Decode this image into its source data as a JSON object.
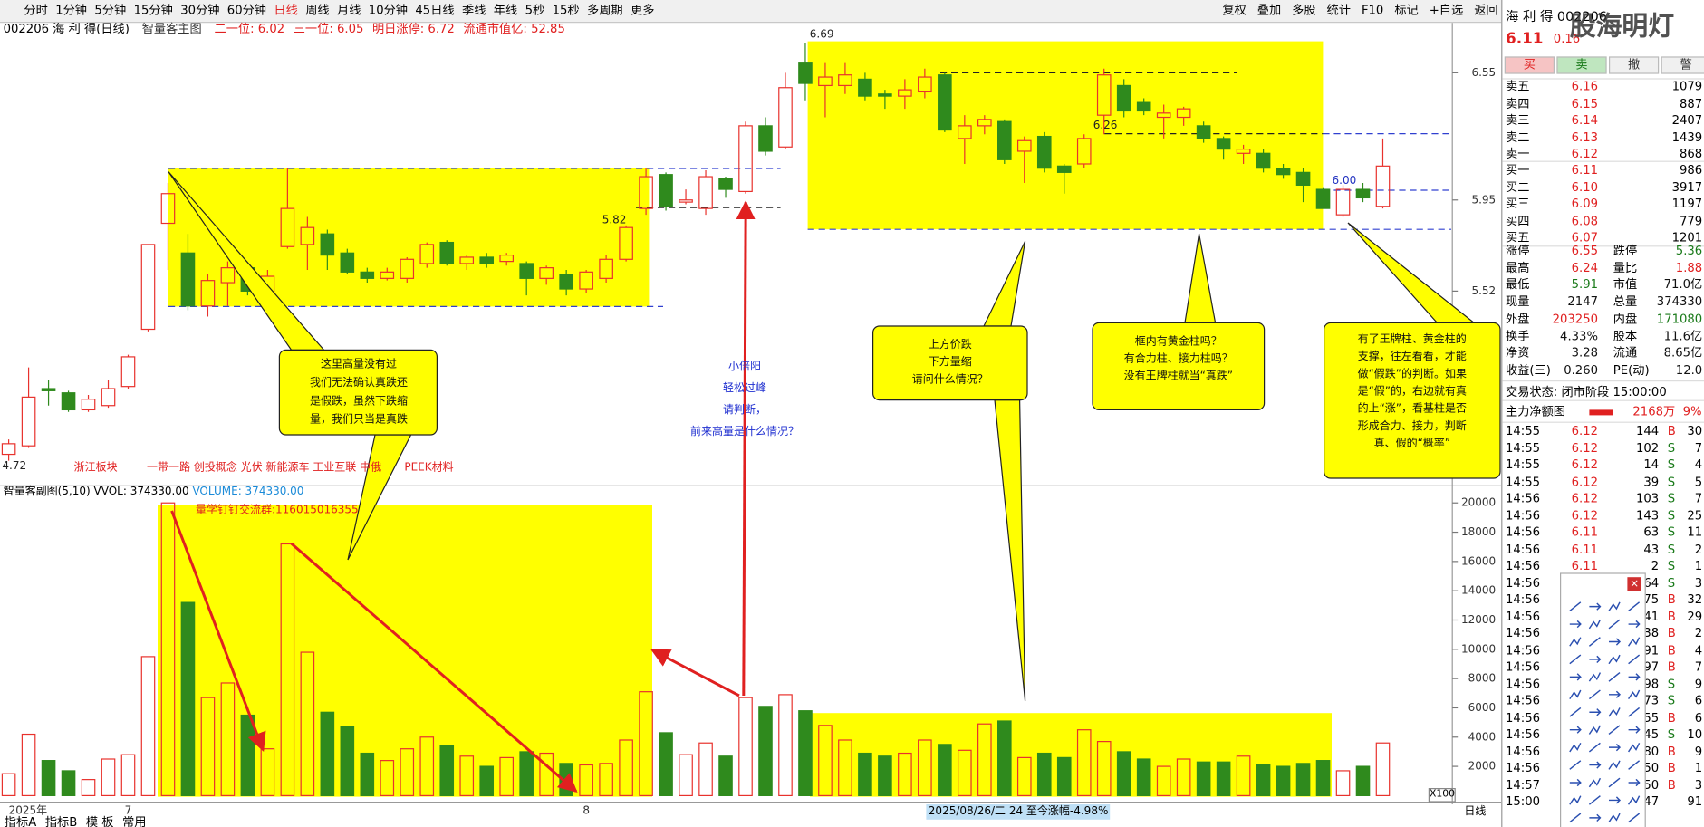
{
  "toolbar": {
    "periods": [
      "分时",
      "1分钟",
      "5分钟",
      "15分钟",
      "30分钟",
      "60分钟",
      "日线",
      "周线",
      "月线",
      "10分钟",
      "45日线",
      "季线",
      "年线",
      "5秒",
      "15秒",
      "多周期",
      "更多"
    ],
    "active": 6,
    "tools": [
      "复权",
      "叠加",
      "多股",
      "统计",
      "F10",
      "标记",
      "+自选",
      "返回"
    ]
  },
  "header": {
    "code": "002206 海 利 得(日线)",
    "indicator": "智量客主图",
    "stats": [
      "二一位: 6.02",
      "三一位: 6.05",
      "明日涨停: 6.72",
      "流通市值亿: 52.85"
    ]
  },
  "sector_labels": [
    "浙江板块",
    "一带一路 创投概念 光伏 新能源车 工业互联 中俄",
    "PEEK材料"
  ],
  "chart_data": [
    {
      "type": "candlestick",
      "categories": [
        "2025年",
        null,
        null,
        null,
        null,
        null,
        "7",
        null,
        null,
        null,
        null,
        null,
        null,
        null,
        null,
        null,
        null,
        null,
        null,
        null,
        null,
        null,
        null,
        null,
        null,
        null,
        null,
        null,
        null,
        "8",
        null,
        null,
        null,
        null,
        null,
        null,
        null,
        null,
        null,
        null,
        null,
        null,
        null,
        null,
        null,
        null,
        null,
        null,
        null,
        null,
        null,
        null,
        null,
        null,
        null,
        null,
        null,
        null,
        null,
        null,
        null,
        null,
        null,
        null,
        null,
        null,
        null,
        null,
        null,
        null
      ],
      "open": [
        4.75,
        4.79,
        5.06,
        5.04,
        4.96,
        4.98,
        5.07,
        5.34,
        5.84,
        5.7,
        5.45,
        5.56,
        5.63,
        5.51,
        5.73,
        5.74,
        5.79,
        5.7,
        5.61,
        5.58,
        5.58,
        5.65,
        5.75,
        5.65,
        5.68,
        5.66,
        5.65,
        5.58,
        5.6,
        5.53,
        5.58,
        5.67,
        5.91,
        6.07,
        5.94,
        5.91,
        6.05,
        5.99,
        6.3,
        6.2,
        6.6,
        6.49,
        6.49,
        6.52,
        6.45,
        6.44,
        6.46,
        6.54,
        6.24,
        6.3,
        6.32,
        6.18,
        6.25,
        6.11,
        6.12,
        6.35,
        6.49,
        6.41,
        6.34,
        6.34,
        6.3,
        6.24,
        6.17,
        6.17,
        6.1,
        6.08,
        6.0,
        5.88,
        6.0,
        5.92
      ],
      "close": [
        4.8,
        5.02,
        5.05,
        4.96,
        5.01,
        5.06,
        5.21,
        5.74,
        5.98,
        5.45,
        5.57,
        5.63,
        5.52,
        5.59,
        5.91,
        5.82,
        5.69,
        5.61,
        5.58,
        5.61,
        5.67,
        5.74,
        5.65,
        5.68,
        5.65,
        5.69,
        5.58,
        5.63,
        5.53,
        5.61,
        5.67,
        5.82,
        6.06,
        5.92,
        5.95,
        6.06,
        6.0,
        6.3,
        6.18,
        6.48,
        6.5,
        6.53,
        6.54,
        6.44,
        6.44,
        6.47,
        6.53,
        6.28,
        6.3,
        6.33,
        6.14,
        6.23,
        6.1,
        6.08,
        6.24,
        6.54,
        6.37,
        6.37,
        6.36,
        6.38,
        6.24,
        6.19,
        6.19,
        6.1,
        6.07,
        6.02,
        5.91,
        6.0,
        5.96,
        6.11
      ],
      "high": [
        4.82,
        5.16,
        5.1,
        5.05,
        5.03,
        5.1,
        5.22,
        5.74,
        6.03,
        5.79,
        5.6,
        5.66,
        5.65,
        5.62,
        6.1,
        5.87,
        5.81,
        5.72,
        5.63,
        5.63,
        5.68,
        5.75,
        5.76,
        5.69,
        5.7,
        5.7,
        5.66,
        5.64,
        5.62,
        5.62,
        5.69,
        5.83,
        6.1,
        6.08,
        6.0,
        6.09,
        6.06,
        6.32,
        6.34,
        6.55,
        6.69,
        6.6,
        6.6,
        6.55,
        6.47,
        6.52,
        6.57,
        6.55,
        6.35,
        6.35,
        6.33,
        6.25,
        6.27,
        6.12,
        6.26,
        6.57,
        6.52,
        6.43,
        6.4,
        6.39,
        6.32,
        6.25,
        6.21,
        6.19,
        6.12,
        6.1,
        6.01,
        6.02,
        6.03,
        6.24
      ],
      "low": [
        4.72,
        4.78,
        4.98,
        4.95,
        4.95,
        4.97,
        5.06,
        5.33,
        5.62,
        5.43,
        5.4,
        5.45,
        5.5,
        5.5,
        5.72,
        5.62,
        5.62,
        5.6,
        5.56,
        5.57,
        5.56,
        5.63,
        5.64,
        5.62,
        5.63,
        5.64,
        5.5,
        5.55,
        5.5,
        5.51,
        5.56,
        5.66,
        5.88,
        5.9,
        5.93,
        5.88,
        5.96,
        5.98,
        6.16,
        6.19,
        6.42,
        6.34,
        6.45,
        6.42,
        6.38,
        6.38,
        6.43,
        6.27,
        6.12,
        6.26,
        6.12,
        6.03,
        6.08,
        5.98,
        6.1,
        6.26,
        6.34,
        6.35,
        6.24,
        6.3,
        6.22,
        6.14,
        6.12,
        6.08,
        6.05,
        5.94,
        5.91,
        5.87,
        5.94,
        5.91
      ],
      "price_labels": [
        4.72,
        6.69,
        5.82,
        6.26,
        {
          "value": 6,
          "label": "6.00"
        }
      ],
      "ylim": [
        4.637,
        6.714
      ],
      "yticks": [
        6.55,
        5.95,
        5.52
      ],
      "up_color": "#e8322d",
      "down_color": "#2f8a1d",
      "grid": false
    },
    {
      "type": "bar",
      "title": "智量客副图(5,10)",
      "subtitle_parts": [
        "VVOL: 374330.00",
        "VOLUME: 374330.00"
      ],
      "note": "量学钉钉交流群:116015016355",
      "values": [
        1500,
        4200,
        2400,
        1700,
        1100,
        2500,
        2800,
        9500,
        20000,
        13200,
        6700,
        7700,
        5500,
        3200,
        17200,
        9800,
        5700,
        4700,
        2900,
        2400,
        3200,
        4000,
        3400,
        2700,
        2000,
        2600,
        3000,
        2900,
        2200,
        2100,
        2200,
        3800,
        7100,
        4300,
        2800,
        3600,
        2700,
        6700,
        6100,
        6900,
        5800,
        4800,
        3800,
        2900,
        2700,
        2900,
        3800,
        3500,
        3100,
        4900,
        5100,
        2600,
        2900,
        2600,
        4500,
        3700,
        3000,
        2500,
        2000,
        2500,
        2300,
        2300,
        2700,
        2100,
        2000,
        2200,
        2400,
        1700,
        2000,
        3600
      ],
      "ylim": [
        0,
        20200
      ],
      "yticks": [
        2000,
        4000,
        6000,
        8000,
        10000,
        12000,
        14000,
        16000,
        18000,
        20000
      ],
      "grid": false
    }
  ],
  "callouts": [
    [
      "这里高量没有过",
      "我们无法确认真跌还",
      "是假跌，虽然下跌缩",
      "量，我们只当是真跌"
    ],
    [
      "小倍阳",
      "轻松过峰",
      "请判断，",
      "前来高量是什么情况？"
    ],
    [
      "上方价跌",
      "下方量缩",
      "请问什么情况？"
    ],
    [
      "框内有黄金柱吗？",
      "有合力柱、接力柱吗？",
      "没有王牌柱就当“真跌”"
    ],
    [
      "有了王牌柱、黄金柱的",
      "支撑，往左看看，才能",
      "做“假跌”的判断。如果",
      "是“假”的，右边就有真",
      "的上“涨”，看基柱是否",
      "形成合力、接力，判断",
      "真、假的“概率”"
    ]
  ],
  "quote": {
    "name": "海 利 得 002206",
    "watermark": "股海明灯",
    "price": "6.11",
    "change": "0.16",
    "buttons": [
      "买",
      "卖",
      "撤",
      "警"
    ],
    "asks": [
      [
        "卖五",
        "6.16",
        "1079"
      ],
      [
        "卖四",
        "6.15",
        "887"
      ],
      [
        "卖三",
        "6.14",
        "2407"
      ],
      [
        "卖二",
        "6.13",
        "1439"
      ],
      [
        "卖一",
        "6.12",
        "868"
      ]
    ],
    "bids": [
      [
        "买一",
        "6.11",
        "986"
      ],
      [
        "买二",
        "6.10",
        "3917"
      ],
      [
        "买三",
        "6.09",
        "1197"
      ],
      [
        "买四",
        "6.08",
        "779"
      ],
      [
        "买五",
        "6.07",
        "1201"
      ]
    ],
    "stats": [
      [
        "涨停",
        "6.55",
        "跌停",
        "5.36"
      ],
      [
        "最高",
        "6.24",
        "量比",
        "1.88"
      ],
      [
        "最低",
        "5.91",
        "市值",
        "71.0亿"
      ],
      [
        "现量",
        "2147",
        "总量",
        "374330"
      ],
      [
        "外盘",
        "203250",
        "内盘",
        "171080"
      ],
      [
        "换手",
        "4.33%",
        "股本",
        "11.6亿"
      ],
      [
        "净资",
        "3.28",
        "流通",
        "8.65亿"
      ],
      [
        "收益(三)",
        "0.260",
        "PE(动)",
        "12.0"
      ]
    ],
    "status": "交易状态: 闭市阶段 15:00:00",
    "flow": [
      "主力净额图",
      "2168万",
      "9%"
    ],
    "trades": [
      [
        "14:55",
        "6.12",
        "144",
        "B",
        "30"
      ],
      [
        "14:55",
        "6.12",
        "102",
        "S",
        "7"
      ],
      [
        "14:55",
        "6.12",
        "14",
        "S",
        "4"
      ],
      [
        "14:55",
        "6.12",
        "39",
        "S",
        "5"
      ],
      [
        "14:56",
        "6.12",
        "103",
        "S",
        "7"
      ],
      [
        "14:56",
        "6.12",
        "143",
        "S",
        "25"
      ],
      [
        "14:56",
        "6.11",
        "63",
        "S",
        "11"
      ],
      [
        "14:56",
        "6.11",
        "43",
        "S",
        "2"
      ],
      [
        "14:56",
        "6.11",
        "2",
        "S",
        "1"
      ],
      [
        "14:56",
        "64",
        "S",
        "3"
      ],
      [
        "14:56",
        "75",
        "B",
        "32"
      ],
      [
        "14:56",
        "41",
        "B",
        "29"
      ],
      [
        "14:56",
        "38",
        "B",
        "2"
      ],
      [
        "14:56",
        "91",
        "B",
        "4"
      ],
      [
        "14:56",
        "97",
        "B",
        "7"
      ],
      [
        "14:56",
        "98",
        "S",
        "9"
      ],
      [
        "14:56",
        "73",
        "S",
        "6"
      ],
      [
        "14:56",
        "55",
        "B",
        "6"
      ],
      [
        "14:56",
        "45",
        "S",
        "10"
      ],
      [
        "14:56",
        "80",
        "B",
        "9"
      ],
      [
        "14:56",
        "50",
        "B",
        "1"
      ],
      [
        "14:57",
        "50",
        "B",
        "3"
      ],
      [
        "15:00",
        "47",
        "91"
      ]
    ]
  },
  "footer": {
    "range_text": "2025/08/26/二 24 至今涨幅-4.98%",
    "zoom": "X100",
    "period": "日线",
    "tabs": [
      "指标A",
      "指标B",
      "模 板",
      "常用"
    ]
  }
}
